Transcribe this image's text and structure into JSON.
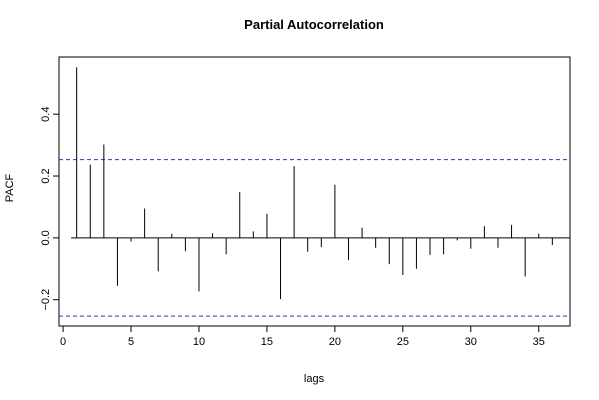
{
  "chart_data": {
    "type": "bar",
    "title": "Partial Autocorrelation",
    "xlabel": "lags",
    "ylabel": "PACF",
    "xlim": [
      -0.3,
      37.3
    ],
    "ylim": [
      -0.285,
      0.585
    ],
    "x_ticks": [
      0,
      5,
      10,
      15,
      20,
      25,
      30,
      35
    ],
    "y_ticks": [
      -0.2,
      0.0,
      0.2,
      0.4
    ],
    "y_tick_labels": [
      "−0.2",
      "0.0",
      "0.2",
      "0.4"
    ],
    "confidence_bound": 0.253,
    "zero_line": true,
    "grid": false,
    "colors": {
      "bars": "#000000",
      "confidence": "#3333cc",
      "axes": "#000000"
    },
    "lags": [
      1,
      2,
      3,
      4,
      5,
      6,
      7,
      8,
      9,
      10,
      11,
      12,
      13,
      14,
      15,
      16,
      17,
      18,
      19,
      20,
      21,
      22,
      23,
      24,
      25,
      26,
      27,
      28,
      29,
      30,
      31,
      32,
      33,
      34,
      35,
      36
    ],
    "values": [
      0.552,
      0.237,
      0.302,
      -0.155,
      -0.012,
      0.095,
      -0.108,
      0.013,
      -0.043,
      -0.173,
      0.015,
      -0.053,
      0.148,
      0.021,
      0.078,
      -0.198,
      0.232,
      -0.045,
      -0.03,
      0.172,
      -0.072,
      0.033,
      -0.032,
      -0.085,
      -0.12,
      -0.1,
      -0.055,
      -0.053,
      -0.008,
      -0.035,
      0.038,
      -0.032,
      0.042,
      -0.125,
      0.014,
      -0.023
    ]
  }
}
